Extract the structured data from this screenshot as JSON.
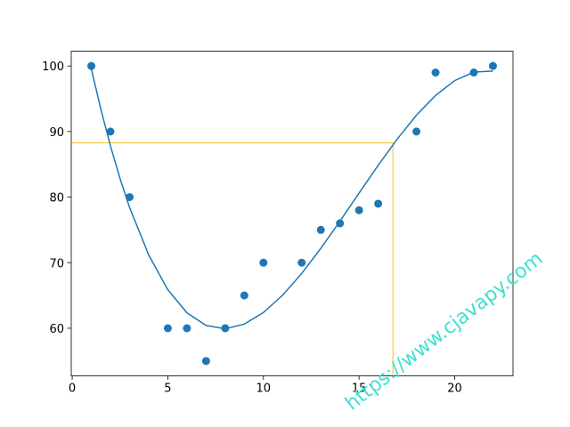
{
  "chart_data": {
    "type": "scatter",
    "series": [
      {
        "type": "scatter",
        "color": "#1f77b4",
        "x": [
          1,
          2,
          3,
          5,
          6,
          7,
          8,
          9,
          10,
          12,
          13,
          14,
          15,
          16,
          18,
          19,
          21,
          22
        ],
        "values": [
          100,
          90,
          80,
          60,
          60,
          55,
          60,
          65,
          70,
          70,
          75,
          76,
          78,
          79,
          90,
          99,
          99,
          100
        ]
      },
      {
        "type": "line",
        "color": "#1f77b4",
        "x": [
          1,
          1.5,
          2,
          2.5,
          3,
          4,
          5,
          6,
          7,
          8,
          9,
          10,
          11,
          12,
          13,
          14,
          15,
          16,
          17,
          18,
          19,
          20,
          21,
          22
        ],
        "values": [
          99.54,
          93.38,
          87.82,
          82.84,
          78.42,
          71.17,
          65.87,
          62.35,
          60.42,
          59.91,
          60.63,
          62.4,
          65.03,
          68.35,
          72.18,
          76.32,
          80.61,
          84.85,
          88.87,
          92.49,
          95.5,
          97.77,
          99.07,
          99.23
        ]
      }
    ],
    "guide": {
      "x": 16.77,
      "y": 88.27,
      "color": "#f0c020"
    },
    "xlim": [
      -0.05,
      23.05
    ],
    "xticks": [
      0,
      5,
      10,
      15,
      20
    ],
    "ylim": [
      52.75,
      102.25
    ],
    "yticks": [
      60,
      70,
      80,
      90,
      100
    ],
    "watermark": "https://www.cjavapy.com"
  }
}
